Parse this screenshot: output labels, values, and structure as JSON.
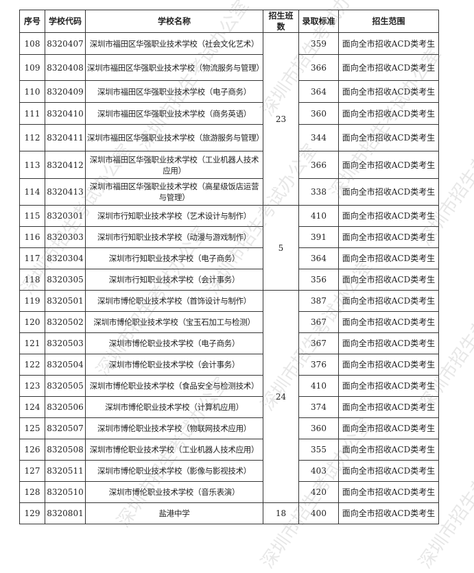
{
  "headers": [
    "序号",
    "学校代码",
    "学校名称",
    "招生班数",
    "录取标准",
    "招生范围"
  ],
  "watermark": "深圳市招生考试办公室",
  "groups": [
    {
      "classes": "23",
      "rows": [
        {
          "no": "108",
          "code": "8320407",
          "name": "深圳市福田区华强职业技术学校（社会文化艺术）",
          "score": "359",
          "scope": "面向全市招收ACD类考生"
        },
        {
          "no": "109",
          "code": "8320408",
          "name": "深圳市福田区华强职业技术学校（物流服务与管理）",
          "score": "366",
          "scope": "面向全市招收ACD类考生"
        },
        {
          "no": "110",
          "code": "8320409",
          "name": "深圳市福田区华强职业技术学校（电子商务）",
          "score": "364",
          "scope": "面向全市招收ACD类考生"
        },
        {
          "no": "111",
          "code": "8320410",
          "name": "深圳市福田区华强职业技术学校（商务英语）",
          "score": "360",
          "scope": "面向全市招收ACD类考生"
        },
        {
          "no": "112",
          "code": "8320411",
          "name": "深圳市福田区华强职业技术学校（旅游服务与管理）",
          "score": "344",
          "scope": "面向全市招收ACD类考生"
        },
        {
          "no": "113",
          "code": "8320412",
          "name": "深圳市福田区华强职业技术学校（工业机器人技术应用）",
          "score": "366",
          "scope": "面向全市招收ACD类考生"
        },
        {
          "no": "114",
          "code": "8320413",
          "name": "深圳市福田区华强职业技术学校（高星级饭店运营与管理）",
          "score": "338",
          "scope": "面向全市招收ACD类考生"
        }
      ]
    },
    {
      "classes": "5",
      "rows": [
        {
          "no": "115",
          "code": "8320301",
          "name": "深圳市行知职业技术学校（艺术设计与制作）",
          "score": "410",
          "scope": "面向全市招收ACD类考生"
        },
        {
          "no": "116",
          "code": "8320303",
          "name": "深圳市行知职业技术学校（动漫与游戏制作）",
          "score": "391",
          "scope": "面向全市招收ACD类考生"
        },
        {
          "no": "117",
          "code": "8320304",
          "name": "深圳市行知职业技术学校（电子商务）",
          "score": "364",
          "scope": "面向全市招收ACD类考生"
        },
        {
          "no": "118",
          "code": "8320305",
          "name": "深圳市行知职业技术学校（会计事务）",
          "score": "356",
          "scope": "面向全市招收ACD类考生"
        }
      ]
    },
    {
      "classes": "24",
      "rows": [
        {
          "no": "119",
          "code": "8320501",
          "name": "深圳市博伦职业技术学校（首饰设计与制作）",
          "score": "387",
          "scope": "面向全市招收ACD类考生"
        },
        {
          "no": "120",
          "code": "8320502",
          "name": "深圳市博伦职业技术学校（宝玉石加工与检测）",
          "score": "367",
          "scope": "面向全市招收ACD类考生"
        },
        {
          "no": "121",
          "code": "8320503",
          "name": "深圳市博伦职业技术学校（电子商务）",
          "score": "367",
          "scope": "面向全市招收ACD类考生"
        },
        {
          "no": "122",
          "code": "8320504",
          "name": "深圳市博伦职业技术学校（会计事务）",
          "score": "376",
          "scope": "面向全市招收ACD类考生"
        },
        {
          "no": "123",
          "code": "8320505",
          "name": "深圳市博伦职业技术学校（食品安全与检测技术）",
          "score": "410",
          "scope": "面向全市招收ACD类考生"
        },
        {
          "no": "124",
          "code": "8320506",
          "name": "深圳市博伦职业技术学校（计算机应用）",
          "score": "374",
          "scope": "面向全市招收ACD类考生"
        },
        {
          "no": "125",
          "code": "8320507",
          "name": "深圳市博伦职业技术学校（物联网技术应用）",
          "score": "360",
          "scope": "面向全市招收ACD类考生"
        },
        {
          "no": "126",
          "code": "8320508",
          "name": "深圳市博伦职业技术学校（工业机器人技术应用）",
          "score": "355",
          "scope": "面向全市招收ACD类考生"
        },
        {
          "no": "127",
          "code": "8320511",
          "name": "深圳市博伦职业技术学校（影像与影视技术）",
          "score": "403",
          "scope": "面向全市招收ACD类考生"
        },
        {
          "no": "128",
          "code": "8320510",
          "name": "深圳市博伦职业技术学校（音乐表演）",
          "score": "420",
          "scope": "面向全市招收ACD类考生"
        }
      ]
    },
    {
      "classes": "18",
      "rows": [
        {
          "no": "129",
          "code": "8320801",
          "name": "盐港中学",
          "score": "400",
          "scope": "面向全市招收ACD类考生"
        }
      ]
    }
  ]
}
